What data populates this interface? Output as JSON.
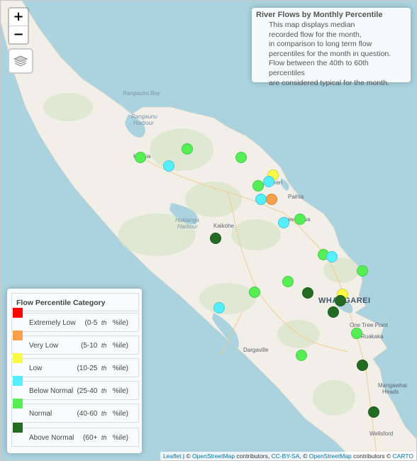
{
  "info": {
    "title": "River Flows by Monthly Percentile",
    "lines": [
      "This map displays median",
      "recorded flow for the month,",
      "in comparison to long term flow",
      "percentiles for the month in question.",
      "Flow between the 40th to 60th percentiles",
      "are considered typical for the month."
    ]
  },
  "controls": {
    "zoom_in": "+",
    "zoom_out": "−"
  },
  "legend": {
    "title": "Flow Percentile Category",
    "items": [
      {
        "label": "Extremely Low",
        "range_pre": "(0-5",
        "range_sup": "th",
        "range_post": "%ile)",
        "color": "#ff0000"
      },
      {
        "label": "Very Low",
        "range_pre": "(5-10",
        "range_sup": "th",
        "range_post": "%ile)",
        "color": "#f9a04a"
      },
      {
        "label": "Low",
        "range_pre": "(10-25",
        "range_sup": "th",
        "range_post": "%ile)",
        "color": "#fafa46"
      },
      {
        "label": "Below Normal",
        "range_pre": "(25-40",
        "range_sup": "th",
        "range_post": "%ile)",
        "color": "#55eefc"
      },
      {
        "label": "Normal",
        "range_pre": "(40-60",
        "range_sup": "th",
        "range_post": "%ile)",
        "color": "#55ee55"
      },
      {
        "label": "Above Normal",
        "range_pre": "(60+",
        "range_sup": "th",
        "range_post": "%ile)",
        "color": "#236b23"
      }
    ]
  },
  "places": {
    "rangaunu_bay": "Rangaunu Bay",
    "rangaunu_harbour_1": "Rangaunu",
    "rangaunu_harbour_2": "Harbour",
    "kaitaia": "Kaitaia",
    "kerikeri": "Kerikeri",
    "paihia": "Paihia",
    "kawakawa": "Kawakawa",
    "kaikohe": "Kaikohe",
    "hokianga_1": "Hokianga",
    "hokianga_2": "Harbour",
    "whangarei": "WHANGAREI",
    "one_tree_point": "One Tree Point",
    "ruakaka": "Ruakaka",
    "dargaville": "Dargaville",
    "mangawhai_1": "Mangawhai",
    "mangawhai_2": "Heads",
    "wellsford": "Wellsford"
  },
  "attribution": {
    "leaflet": "Leaflet",
    "sep1": " | © ",
    "osm": "OpenStreetMap",
    "mid": " contributors, ",
    "ccbysa": "CC-BY-SA",
    "sep2": ", © ",
    "osm2": "OpenStreetMap",
    "mid2": " contributors © ",
    "carto": "CARTO"
  },
  "colors": {
    "very_low": "#f9a04a",
    "low": "#fafa46",
    "below_normal": "#55eefc",
    "normal": "#55ee55",
    "above_normal": "#236b23"
  },
  "sites": [
    {
      "category": "normal"
    },
    {
      "category": "normal"
    },
    {
      "category": "below_normal"
    },
    {
      "category": "normal"
    },
    {
      "category": "low"
    },
    {
      "category": "below_normal"
    },
    {
      "category": "normal"
    },
    {
      "category": "below_normal"
    },
    {
      "category": "very_low"
    },
    {
      "category": "normal"
    },
    {
      "category": "below_normal"
    },
    {
      "category": "above_normal"
    },
    {
      "category": "normal"
    },
    {
      "category": "below_normal"
    },
    {
      "category": "normal"
    },
    {
      "category": "normal"
    },
    {
      "category": "normal"
    },
    {
      "category": "above_normal"
    },
    {
      "category": "low"
    },
    {
      "category": "above_normal"
    },
    {
      "category": "above_normal"
    },
    {
      "category": "below_normal"
    },
    {
      "category": "normal"
    },
    {
      "category": "normal"
    },
    {
      "category": "above_normal"
    },
    {
      "category": "above_normal"
    }
  ]
}
